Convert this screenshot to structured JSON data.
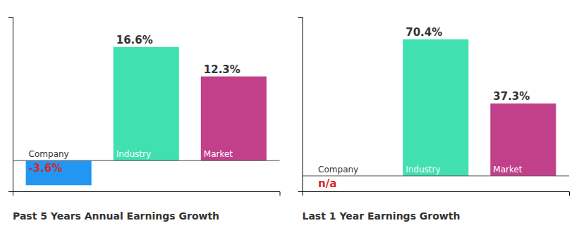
{
  "chart_data": [
    {
      "type": "bar",
      "title": "Past 5 Years Annual Earnings Growth",
      "categories": [
        "Company",
        "Industry",
        "Market"
      ],
      "values": [
        -3.6,
        16.6,
        12.3
      ],
      "value_labels": [
        "-3.6%",
        "16.6%",
        "12.3%"
      ],
      "colors": [
        "#2196f3",
        "#40e0b0",
        "#c0408a"
      ],
      "ylim": [
        -4.5,
        21
      ],
      "tick_labels": false,
      "data_labels": true
    },
    {
      "type": "bar",
      "title": "Last 1 Year Earnings Growth",
      "categories": [
        "Company",
        "Industry",
        "Market"
      ],
      "values": [
        0,
        70.4,
        37.3
      ],
      "value_labels": [
        "n/a",
        "70.4%",
        "37.3%"
      ],
      "colors": [
        "#2196f3",
        "#40e0b0",
        "#c0408a"
      ],
      "ylim": [
        -8,
        82
      ],
      "tick_labels": false,
      "data_labels": true
    }
  ]
}
